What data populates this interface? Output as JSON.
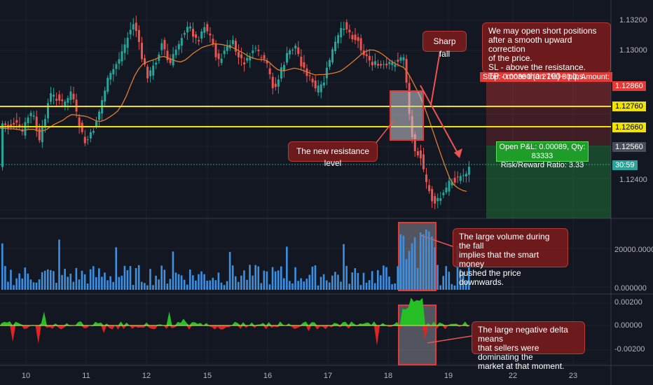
{
  "colors": {
    "background": "#131722",
    "bull": "#26a69a",
    "bear": "#ef5350",
    "support": "#f2e200",
    "ma": "#e07b2a",
    "volume": "#3d8fe0",
    "delta_pos": "#26c026",
    "delta_neg": "#e02424",
    "annotation_bg": "#7a1b1b"
  },
  "price_axis": {
    "labels": [
      "1.13200",
      "1.13000",
      "1.12400"
    ],
    "tag_stop": "1.12860",
    "tag_upper": "1.12760",
    "tag_lower": "1.12660",
    "tag_current": "1.12560",
    "tag_timer": "30:59"
  },
  "volume_axis": {
    "labels": [
      "20000.00000",
      "0.000000"
    ]
  },
  "delta_axis": {
    "labels": [
      "0.00200",
      "0.00000",
      "-0.00200"
    ]
  },
  "x_axis": {
    "labels": [
      "10",
      "11",
      "12",
      "15",
      "16",
      "17",
      "18",
      "19",
      "22",
      "23"
    ]
  },
  "trade": {
    "stop_label": "Stop: 0.00300 (0.27%) 30.0, Amount: 7",
    "pnl_line1": "Open P&L: 0.00089, Qty: 83333",
    "pnl_line2": "Risk/Reward Ratio: 3.33"
  },
  "annotations": {
    "sharp_fall": "Sharp fall",
    "plan": "We may open short positions\nafter a smooth upward correction\nof the price.\nSL - above the resistance.\nTP - more than 100+ pips.",
    "resistance": "The new resistance level",
    "volume": "The large volume during the fall\nimplies that the smart money\npushed the price downwards.",
    "delta": "The large negative delta means\nthat sellers were dominating the\nmarket at that moment."
  }
}
